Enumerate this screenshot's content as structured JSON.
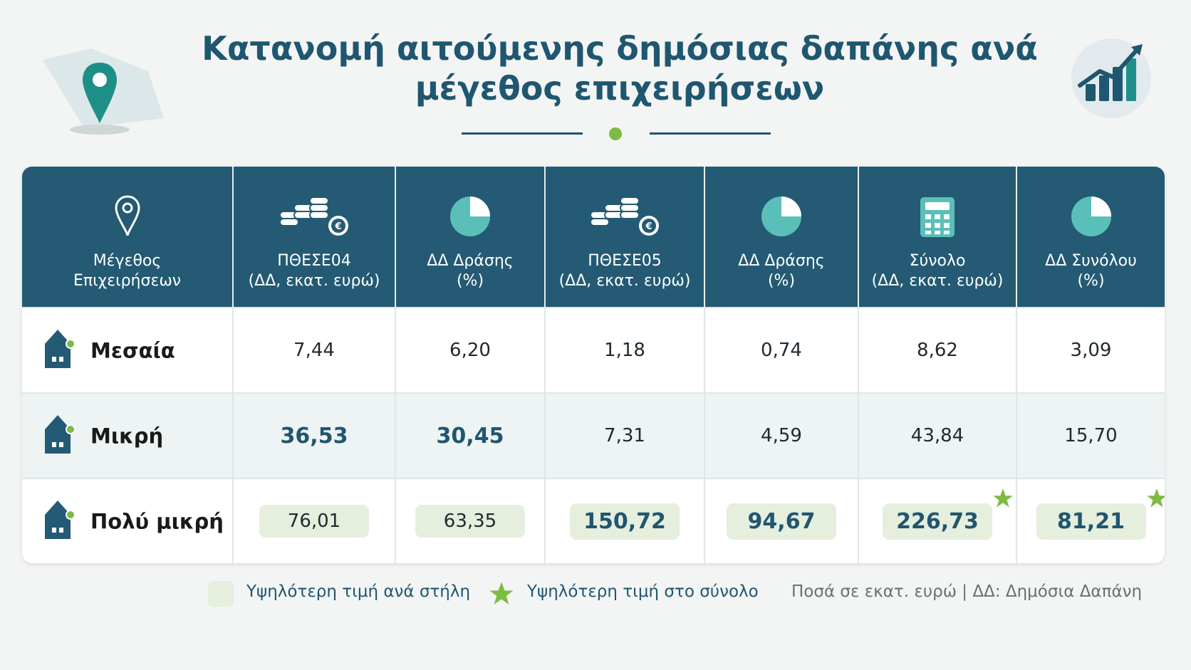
{
  "header": {
    "title_line1": "Κατανομή αιτούμενης δημόσιας δαπάνης ανά",
    "title_line2": "μέγεθος επιχειρήσεων"
  },
  "colors": {
    "header_bg": "#245a73",
    "accent_teal": "#5bbfb9",
    "accent_green": "#7dbb42",
    "highlight_bg": "#e6eedd",
    "title": "#1f5670"
  },
  "chart_data": {
    "type": "table",
    "columns": [
      {
        "l1": "Μέγεθος",
        "l2": "Επιχειρήσεων",
        "icon": "location-pin-icon"
      },
      {
        "l1": "ΠΘΕΣΕ04",
        "l2": "(ΔΔ, εκατ. ευρώ)",
        "icon": "coins-euro-icon"
      },
      {
        "l1": "ΔΔ Δράσης",
        "l2": "(%)",
        "icon": "pie-chart-icon"
      },
      {
        "l1": "ΠΘΕΣΕ05",
        "l2": "(ΔΔ, εκατ. ευρώ)",
        "icon": "coins-euro-icon"
      },
      {
        "l1": "ΔΔ Δράσης",
        "l2": "(%)",
        "icon": "pie-chart-icon"
      },
      {
        "l1": "Σύνολο",
        "l2": "(ΔΔ, εκατ. ευρώ)",
        "icon": "calculator-icon"
      },
      {
        "l1": "ΔΔ Συνόλου",
        "l2": "(%)",
        "icon": "pie-chart-icon"
      }
    ],
    "rows": [
      {
        "label": "Μεσαία",
        "values": [
          "7,44",
          "6,20",
          "1,18",
          "0,74",
          "8,62",
          "3,09"
        ]
      },
      {
        "label": "Μικρή",
        "values": [
          "36,53",
          "30,45",
          "7,31",
          "4,59",
          "43,84",
          "15,70"
        ]
      },
      {
        "label": "Πολύ μικρή",
        "values": [
          "76,01",
          "63,35",
          "150,72",
          "94,67",
          "226,73",
          "81,21"
        ]
      }
    ],
    "bold_cells": [
      [
        1,
        0
      ],
      [
        1,
        1
      ],
      [
        2,
        2
      ],
      [
        2,
        3
      ],
      [
        2,
        4
      ],
      [
        2,
        5
      ]
    ],
    "highlight_cells": [
      [
        2,
        0
      ],
      [
        2,
        1
      ],
      [
        2,
        2
      ],
      [
        2,
        3
      ],
      [
        2,
        4
      ],
      [
        2,
        5
      ]
    ],
    "star_cells": [
      [
        2,
        4
      ],
      [
        2,
        5
      ]
    ]
  },
  "legend": {
    "column_max": "Υψηλότερη τιμή ανά στήλη",
    "overall_max": "Υψηλότερη τιμή στο σύνολο",
    "note": "Ποσά σε εκατ. ευρώ | ΔΔ: Δημόσια Δαπάνη"
  }
}
